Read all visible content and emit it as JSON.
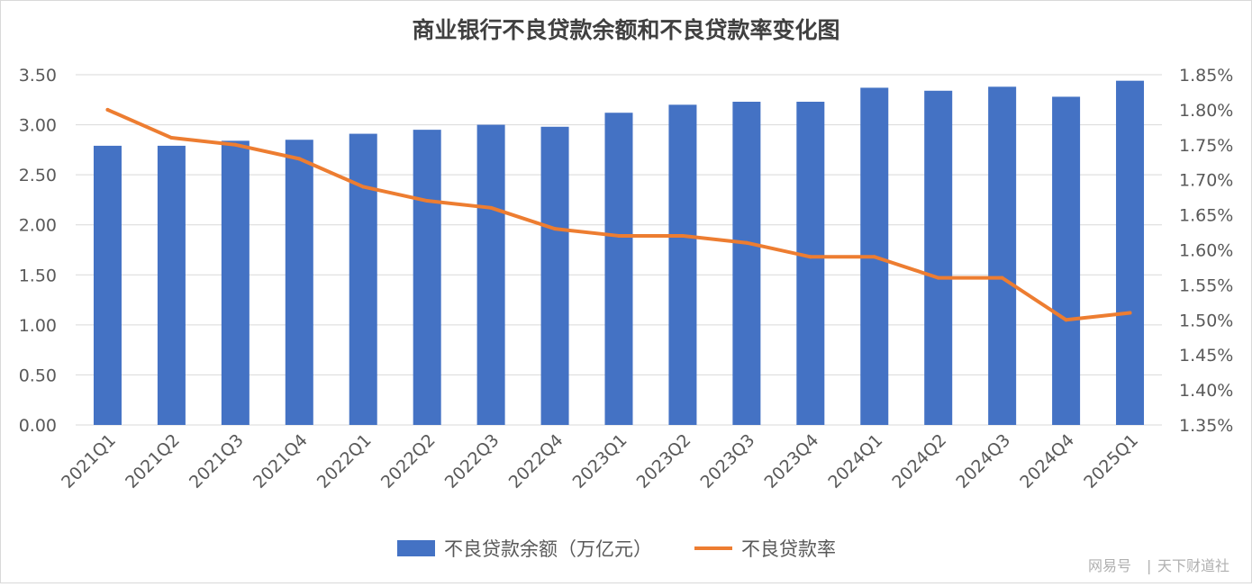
{
  "chart_data": {
    "type": "bar+line",
    "title": "商业银行不良贷款余额和不良贷款率变化图",
    "categories": [
      "2021Q1",
      "2021Q2",
      "2021Q3",
      "2021Q4",
      "2022Q1",
      "2022Q2",
      "2022Q3",
      "2022Q4",
      "2023Q1",
      "2023Q2",
      "2023Q3",
      "2023Q4",
      "2024Q1",
      "2024Q2",
      "2024Q3",
      "2024Q4",
      "2025Q1"
    ],
    "series": [
      {
        "name": "不良贷款余额（万亿元）",
        "type": "bar",
        "axis": "left",
        "color": "#4472C4",
        "values": [
          2.79,
          2.79,
          2.84,
          2.85,
          2.91,
          2.95,
          3.0,
          2.98,
          3.12,
          3.2,
          3.23,
          3.23,
          3.37,
          3.34,
          3.38,
          3.28,
          3.44
        ]
      },
      {
        "name": "不良贷款率",
        "type": "line",
        "axis": "right",
        "color": "#ED7D31",
        "values": [
          1.8,
          1.76,
          1.75,
          1.73,
          1.69,
          1.67,
          1.66,
          1.63,
          1.62,
          1.62,
          1.61,
          1.59,
          1.59,
          1.56,
          1.56,
          1.5,
          1.51
        ]
      }
    ],
    "y_left": {
      "min": 0,
      "max": 3.5,
      "ticks": [
        "0.00",
        "0.50",
        "1.00",
        "1.50",
        "2.00",
        "2.50",
        "3.00",
        "3.50"
      ]
    },
    "y_right": {
      "min": 1.35,
      "max": 1.85,
      "ticks": [
        "1.35%",
        "1.40%",
        "1.45%",
        "1.50%",
        "1.55%",
        "1.60%",
        "1.65%",
        "1.70%",
        "1.75%",
        "1.80%",
        "1.85%"
      ]
    },
    "grid": true,
    "legend_position": "bottom"
  },
  "watermark": {
    "source": "网易号",
    "author": "天下财道社",
    "separator": "|"
  }
}
